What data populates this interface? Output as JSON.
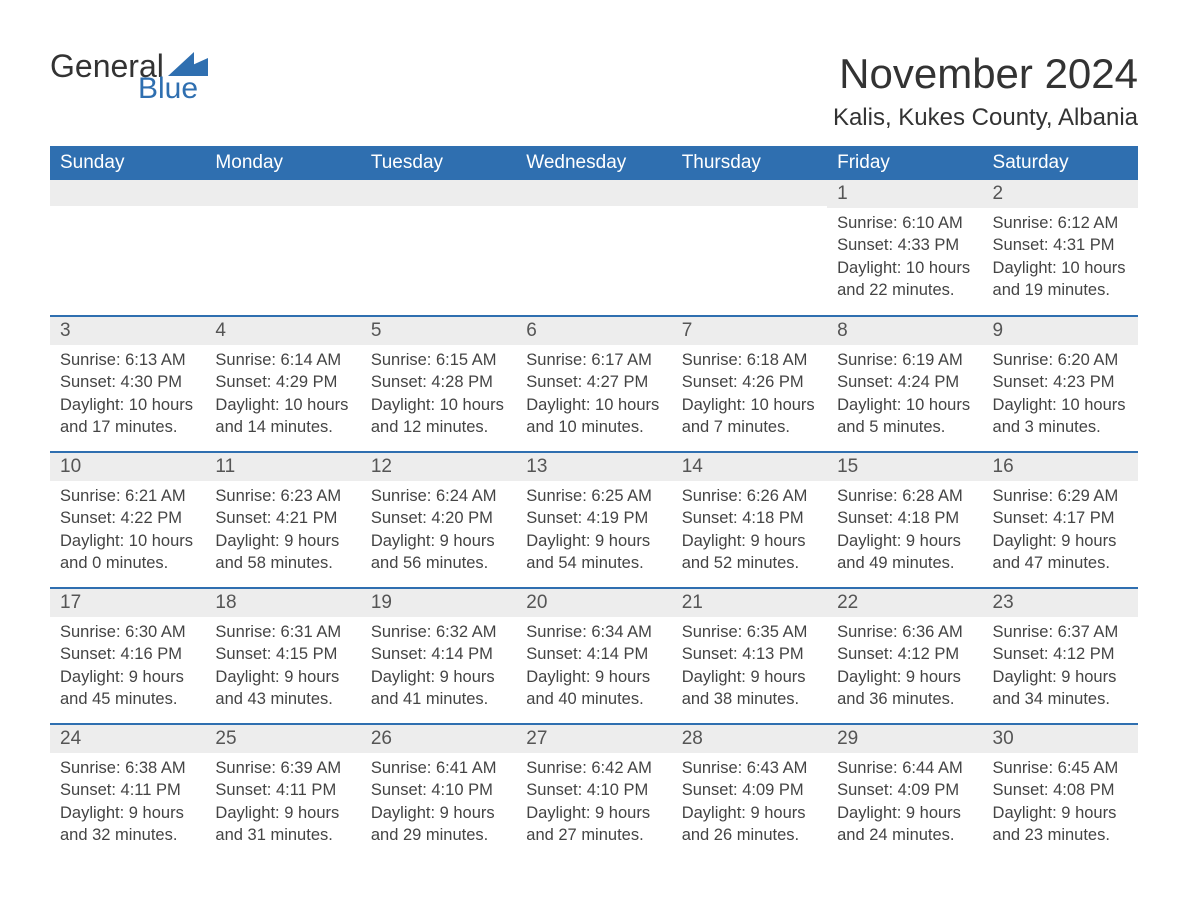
{
  "logo": {
    "text_general": "General",
    "text_blue": "Blue",
    "brand_color": "#2f6fb0"
  },
  "title": "November 2024",
  "location": "Kalis, Kukes County, Albania",
  "colors": {
    "header_bg": "#2f6fb0",
    "header_text": "#ffffff",
    "daynum_bg": "#ededed",
    "row_border": "#2f6fb0",
    "body_text": "#444444",
    "page_bg": "#ffffff"
  },
  "day_names": [
    "Sunday",
    "Monday",
    "Tuesday",
    "Wednesday",
    "Thursday",
    "Friday",
    "Saturday"
  ],
  "weeks": [
    [
      {
        "day": "",
        "lines": []
      },
      {
        "day": "",
        "lines": []
      },
      {
        "day": "",
        "lines": []
      },
      {
        "day": "",
        "lines": []
      },
      {
        "day": "",
        "lines": []
      },
      {
        "day": "1",
        "lines": [
          "Sunrise: 6:10 AM",
          "Sunset: 4:33 PM",
          "Daylight: 10 hours and 22 minutes."
        ]
      },
      {
        "day": "2",
        "lines": [
          "Sunrise: 6:12 AM",
          "Sunset: 4:31 PM",
          "Daylight: 10 hours and 19 minutes."
        ]
      }
    ],
    [
      {
        "day": "3",
        "lines": [
          "Sunrise: 6:13 AM",
          "Sunset: 4:30 PM",
          "Daylight: 10 hours and 17 minutes."
        ]
      },
      {
        "day": "4",
        "lines": [
          "Sunrise: 6:14 AM",
          "Sunset: 4:29 PM",
          "Daylight: 10 hours and 14 minutes."
        ]
      },
      {
        "day": "5",
        "lines": [
          "Sunrise: 6:15 AM",
          "Sunset: 4:28 PM",
          "Daylight: 10 hours and 12 minutes."
        ]
      },
      {
        "day": "6",
        "lines": [
          "Sunrise: 6:17 AM",
          "Sunset: 4:27 PM",
          "Daylight: 10 hours and 10 minutes."
        ]
      },
      {
        "day": "7",
        "lines": [
          "Sunrise: 6:18 AM",
          "Sunset: 4:26 PM",
          "Daylight: 10 hours and 7 minutes."
        ]
      },
      {
        "day": "8",
        "lines": [
          "Sunrise: 6:19 AM",
          "Sunset: 4:24 PM",
          "Daylight: 10 hours and 5 minutes."
        ]
      },
      {
        "day": "9",
        "lines": [
          "Sunrise: 6:20 AM",
          "Sunset: 4:23 PM",
          "Daylight: 10 hours and 3 minutes."
        ]
      }
    ],
    [
      {
        "day": "10",
        "lines": [
          "Sunrise: 6:21 AM",
          "Sunset: 4:22 PM",
          "Daylight: 10 hours and 0 minutes."
        ]
      },
      {
        "day": "11",
        "lines": [
          "Sunrise: 6:23 AM",
          "Sunset: 4:21 PM",
          "Daylight: 9 hours and 58 minutes."
        ]
      },
      {
        "day": "12",
        "lines": [
          "Sunrise: 6:24 AM",
          "Sunset: 4:20 PM",
          "Daylight: 9 hours and 56 minutes."
        ]
      },
      {
        "day": "13",
        "lines": [
          "Sunrise: 6:25 AM",
          "Sunset: 4:19 PM",
          "Daylight: 9 hours and 54 minutes."
        ]
      },
      {
        "day": "14",
        "lines": [
          "Sunrise: 6:26 AM",
          "Sunset: 4:18 PM",
          "Daylight: 9 hours and 52 minutes."
        ]
      },
      {
        "day": "15",
        "lines": [
          "Sunrise: 6:28 AM",
          "Sunset: 4:18 PM",
          "Daylight: 9 hours and 49 minutes."
        ]
      },
      {
        "day": "16",
        "lines": [
          "Sunrise: 6:29 AM",
          "Sunset: 4:17 PM",
          "Daylight: 9 hours and 47 minutes."
        ]
      }
    ],
    [
      {
        "day": "17",
        "lines": [
          "Sunrise: 6:30 AM",
          "Sunset: 4:16 PM",
          "Daylight: 9 hours and 45 minutes."
        ]
      },
      {
        "day": "18",
        "lines": [
          "Sunrise: 6:31 AM",
          "Sunset: 4:15 PM",
          "Daylight: 9 hours and 43 minutes."
        ]
      },
      {
        "day": "19",
        "lines": [
          "Sunrise: 6:32 AM",
          "Sunset: 4:14 PM",
          "Daylight: 9 hours and 41 minutes."
        ]
      },
      {
        "day": "20",
        "lines": [
          "Sunrise: 6:34 AM",
          "Sunset: 4:14 PM",
          "Daylight: 9 hours and 40 minutes."
        ]
      },
      {
        "day": "21",
        "lines": [
          "Sunrise: 6:35 AM",
          "Sunset: 4:13 PM",
          "Daylight: 9 hours and 38 minutes."
        ]
      },
      {
        "day": "22",
        "lines": [
          "Sunrise: 6:36 AM",
          "Sunset: 4:12 PM",
          "Daylight: 9 hours and 36 minutes."
        ]
      },
      {
        "day": "23",
        "lines": [
          "Sunrise: 6:37 AM",
          "Sunset: 4:12 PM",
          "Daylight: 9 hours and 34 minutes."
        ]
      }
    ],
    [
      {
        "day": "24",
        "lines": [
          "Sunrise: 6:38 AM",
          "Sunset: 4:11 PM",
          "Daylight: 9 hours and 32 minutes."
        ]
      },
      {
        "day": "25",
        "lines": [
          "Sunrise: 6:39 AM",
          "Sunset: 4:11 PM",
          "Daylight: 9 hours and 31 minutes."
        ]
      },
      {
        "day": "26",
        "lines": [
          "Sunrise: 6:41 AM",
          "Sunset: 4:10 PM",
          "Daylight: 9 hours and 29 minutes."
        ]
      },
      {
        "day": "27",
        "lines": [
          "Sunrise: 6:42 AM",
          "Sunset: 4:10 PM",
          "Daylight: 9 hours and 27 minutes."
        ]
      },
      {
        "day": "28",
        "lines": [
          "Sunrise: 6:43 AM",
          "Sunset: 4:09 PM",
          "Daylight: 9 hours and 26 minutes."
        ]
      },
      {
        "day": "29",
        "lines": [
          "Sunrise: 6:44 AM",
          "Sunset: 4:09 PM",
          "Daylight: 9 hours and 24 minutes."
        ]
      },
      {
        "day": "30",
        "lines": [
          "Sunrise: 6:45 AM",
          "Sunset: 4:08 PM",
          "Daylight: 9 hours and 23 minutes."
        ]
      }
    ]
  ]
}
